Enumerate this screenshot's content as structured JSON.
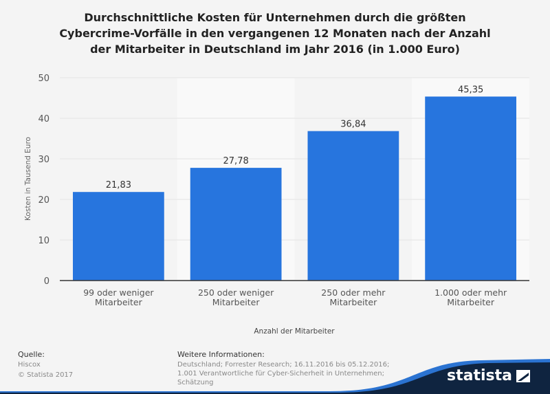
{
  "chart_data": {
    "type": "bar",
    "title": "Durchschnittliche Kosten für Unternehmen durch die größten Cybercrime-Vorfälle in den vergangenen 12 Monaten nach der Anzahl der Mitarbeiter in Deutschland im Jahr 2016 (in 1.000 Euro)",
    "title_lines": [
      "Durchschnittliche Kosten für Unternehmen durch die größten",
      "Cybercrime-Vorfälle in den vergangenen 12 Monaten nach der Anzahl",
      "der Mitarbeiter in Deutschland im Jahr 2016 (in 1.000 Euro)"
    ],
    "categories": [
      [
        "99 oder weniger",
        "Mitarbeiter"
      ],
      [
        "250 oder weniger",
        "Mitarbeiter"
      ],
      [
        "250 oder mehr",
        "Mitarbeiter"
      ],
      [
        "1.000 oder mehr",
        "Mitarbeiter"
      ]
    ],
    "values": [
      21.83,
      27.78,
      36.84,
      45.35
    ],
    "data_labels": [
      "21,83",
      "27,78",
      "36,84",
      "45,35"
    ],
    "xlabel": "Anzahl der Mitarbeiter",
    "ylabel": "Kosten in Tausend Euro",
    "ylim": [
      0,
      50
    ],
    "yticks": [
      0,
      10,
      20,
      30,
      40,
      50
    ],
    "grid": true,
    "bar_color": "#2775de"
  },
  "footer": {
    "source_heading": "Quelle:",
    "source": "Hiscox",
    "copyright": "© Statista 2017",
    "info_heading": "Weitere Informationen:",
    "info_lines": [
      "Deutschland; Forrester Research; 16.11.2016 bis 05.12.2016;",
      "1.001 Verantwortliche für Cyber-Sicherheit in Unternehmen;",
      "Schätzung"
    ],
    "logo": "statista"
  }
}
